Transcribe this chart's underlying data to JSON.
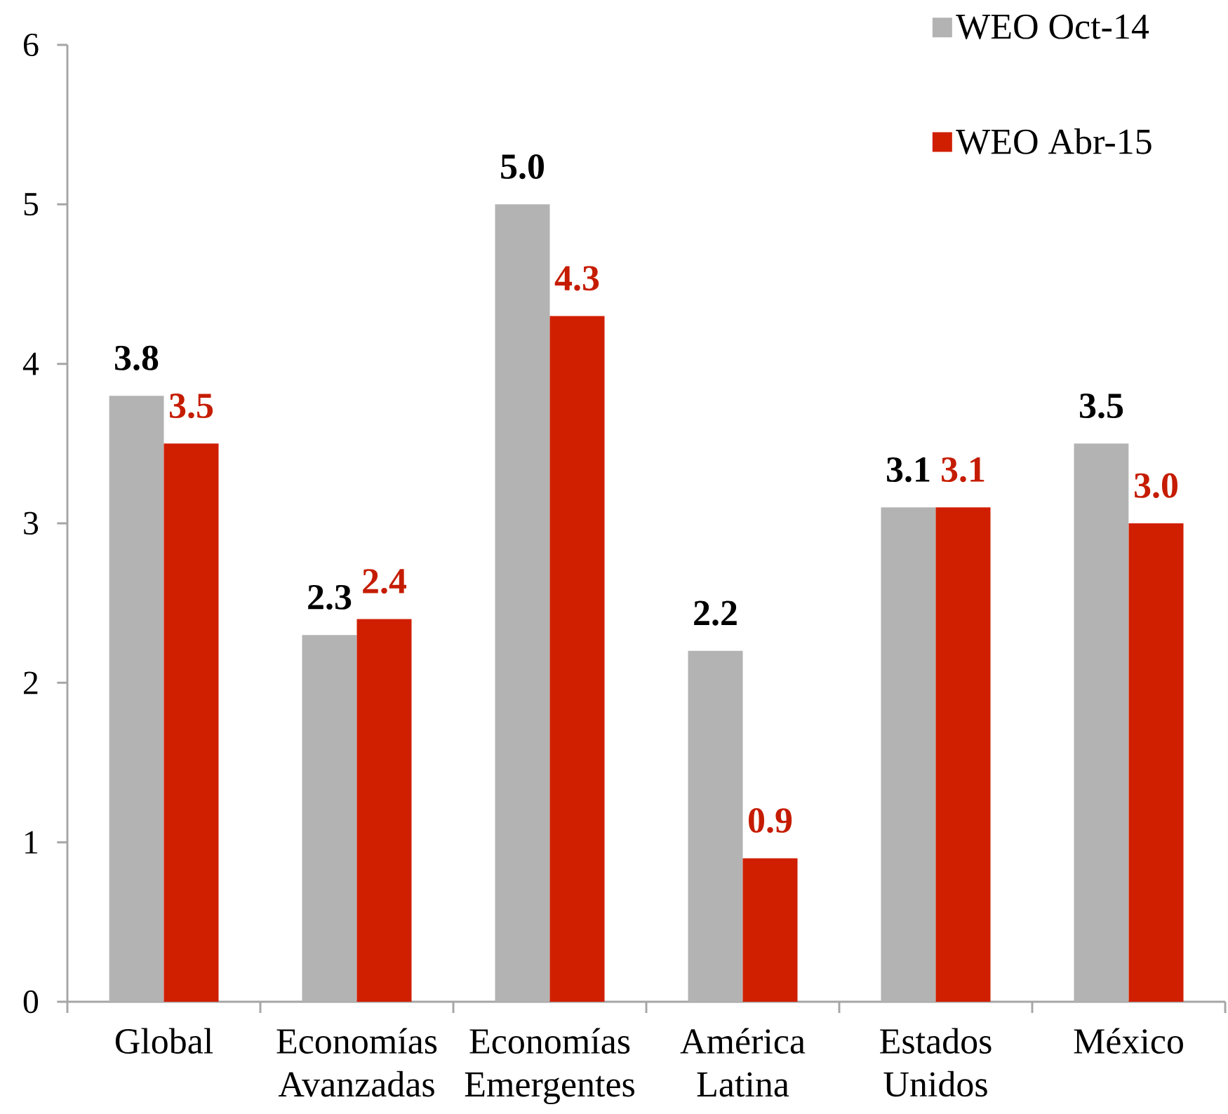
{
  "chart_data": {
    "type": "bar",
    "categories": [
      "Global",
      "Economías Avanzadas",
      "Economías Emergentes",
      "América Latina",
      "Estados Unidos",
      "México"
    ],
    "series": [
      {
        "name": "WEO Oct-14",
        "color": "#b3b3b3",
        "values": [
          3.8,
          2.3,
          5.0,
          2.2,
          3.1,
          3.5
        ],
        "value_labels": [
          "3.8",
          "2.3",
          "5.0",
          "2.2",
          "3.1",
          "3.5"
        ]
      },
      {
        "name": "WEO Abr-15",
        "color": "#d01e00",
        "values": [
          3.5,
          2.4,
          4.3,
          0.9,
          3.1,
          3.0
        ],
        "value_labels": [
          "3.5",
          "2.4",
          "4.3",
          "0.9",
          "3.1",
          "3.0"
        ]
      }
    ],
    "ylim": [
      0,
      6
    ],
    "yticks": [
      0,
      1,
      2,
      3,
      4,
      5,
      6
    ],
    "legend": "top right"
  }
}
